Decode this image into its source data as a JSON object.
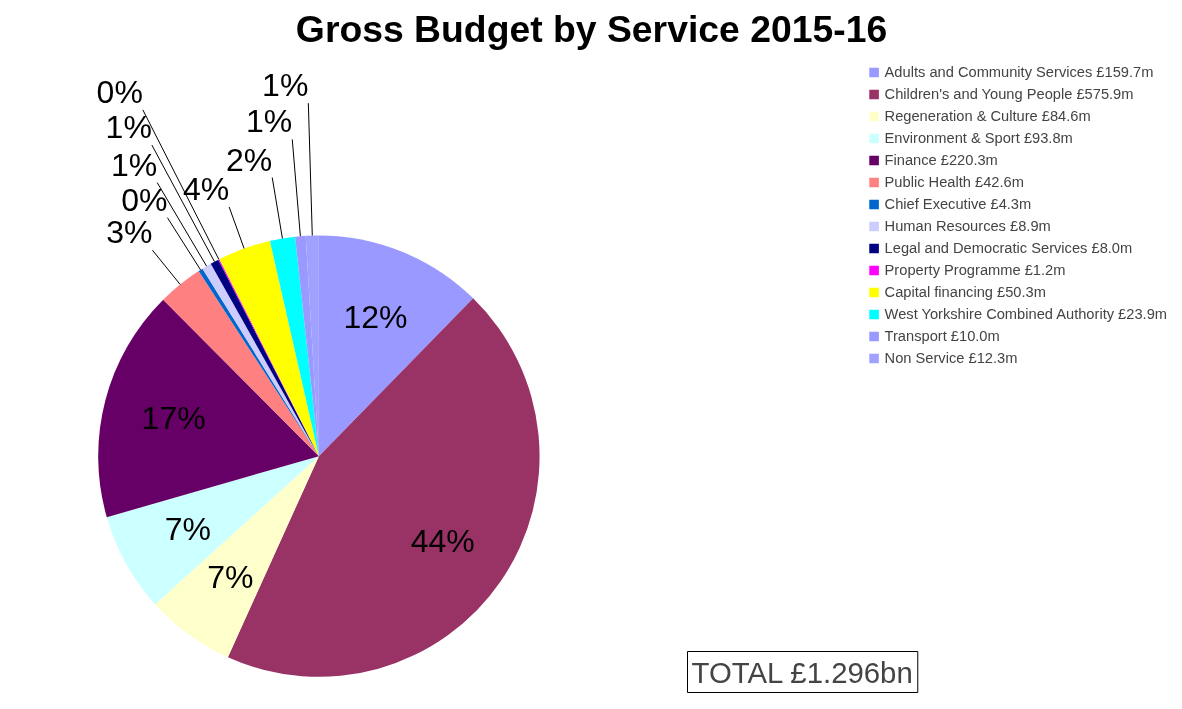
{
  "chart_data": {
    "type": "pie",
    "title": "Gross Budget by Service 2015-16",
    "categories": [
      "Adults and Community Services £159.7m",
      "Children's and Young People £575.9m",
      "Regeneration & Culture £84.6m",
      "Environment & Sport £93.8m",
      "Finance £220.3m",
      "Public Health £42.6m",
      "Chief Executive £4.3m",
      "Human Resources £8.9m",
      "Legal and Democratic Services £8.0m",
      "Property Programme £1.2m",
      "Capital financing £50.3m",
      "West Yorkshire Combined Authority £23.9m",
      "Transport £10.0m",
      "Non Service £12.3m"
    ],
    "values": [
      12.32,
      44.44,
      6.53,
      7.24,
      17.0,
      3.29,
      0.33,
      0.69,
      0.62,
      0.09,
      3.88,
      1.84,
      0.77,
      0.95
    ],
    "colors": [
      "#9999ff",
      "#993366",
      "#ffffcc",
      "#ccffff",
      "#660066",
      "#ff8080",
      "#0066cc",
      "#ccccff",
      "#000080",
      "#ff00ff",
      "#ffff00",
      "#00ffff",
      "#9999ff",
      "#a0a0ff"
    ],
    "value_labels": [
      "12%",
      "44%",
      "7%",
      "7%",
      "17%",
      "3%",
      "0%",
      "1%",
      "1%",
      "0%",
      "4%",
      "2%",
      "1%",
      "1%"
    ],
    "legend": "right",
    "annotations": [
      "TOTAL £1.296bn"
    ]
  }
}
